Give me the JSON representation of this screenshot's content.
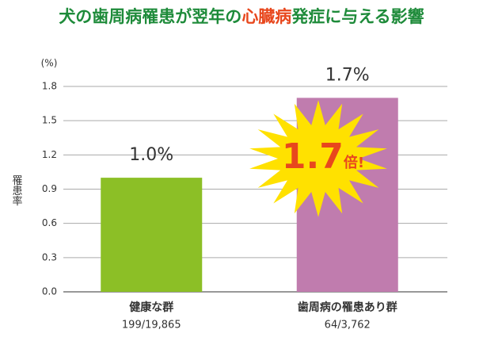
{
  "chart_data": {
    "type": "bar",
    "title_parts": [
      "犬の歯周病罹患が翌年の",
      "心臓病",
      "発症に与える影響"
    ],
    "title_color": "#1e8b3a",
    "highlight_color": "#e8471d",
    "y_unit": "(%)",
    "ylabel": "罹患率",
    "categories": [
      "健康な群",
      "歯周病の罹患あり群"
    ],
    "sublabels": [
      "199/19,865",
      "64/3,762"
    ],
    "values": [
      1.0,
      1.7
    ],
    "value_labels": [
      "1.0%",
      "1.7%"
    ],
    "colors": [
      "#8cbf26",
      "#c07cae"
    ],
    "ylim": [
      0,
      1.8
    ],
    "yticks": [
      {
        "value": 0,
        "label": "0.0"
      },
      0.3,
      0.6,
      0.9,
      1.2,
      1.5,
      1.8
    ],
    "grid": true,
    "annotation": {
      "text": "1.7",
      "suffix": "倍!",
      "color": "#e8471d",
      "burst_color": "#ffe100"
    }
  }
}
